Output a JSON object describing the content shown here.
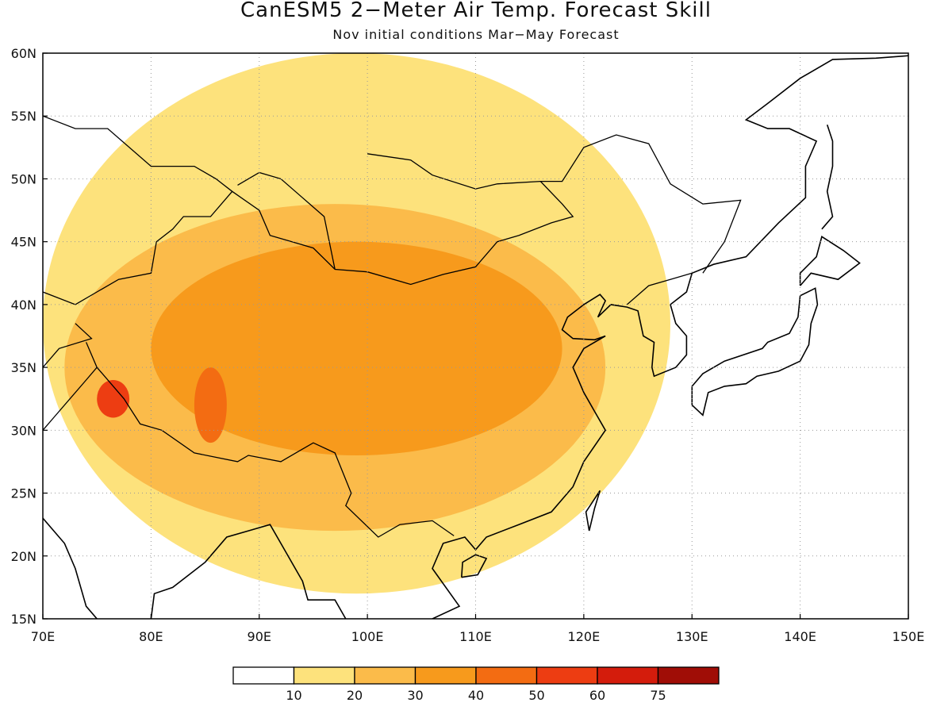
{
  "header": {
    "title": "CanESM5 2−Meter Air Temp. Forecast Skill",
    "subtitle": "Nov initial conditions  Mar−May Forecast"
  },
  "map": {
    "lon_range": [
      70,
      150
    ],
    "lat_range": [
      15,
      60
    ],
    "lon_ticks": [
      "70E",
      "80E",
      "90E",
      "100E",
      "110E",
      "120E",
      "130E",
      "140E",
      "150E"
    ],
    "lat_ticks": [
      "15N",
      "20N",
      "25N",
      "30N",
      "35N",
      "40N",
      "45N",
      "50N",
      "55N",
      "60N"
    ],
    "gridlines": "dotted"
  },
  "colorbar": {
    "labels": [
      "10",
      "20",
      "30",
      "40",
      "50",
      "60",
      "75"
    ],
    "colors": [
      "#ffffff",
      "#fde27c",
      "#fbbb4a",
      "#f79a1c",
      "#f36c12",
      "#ed3d12",
      "#d41c0c",
      "#a00d06"
    ]
  },
  "chart_data": {
    "type": "heatmap",
    "title": "CanESM5 2−Meter Air Temp. Forecast Skill",
    "subtitle": "Nov initial conditions  Mar−May Forecast",
    "x_range": [
      70,
      150
    ],
    "y_range": [
      15,
      60
    ],
    "levels": [
      10,
      20,
      30,
      40,
      50,
      60,
      75
    ],
    "level_colors": [
      "#ffffff",
      "#fde27c",
      "#fbbb4a",
      "#f79a1c",
      "#f36c12",
      "#ed3d12",
      "#d41c0c",
      "#a00d06"
    ],
    "regions": [
      {
        "level": 1,
        "lon": [
          70,
          128
        ],
        "lat": [
          17,
          60
        ]
      },
      {
        "level": 2,
        "lon": [
          72,
          122
        ],
        "lat": [
          22,
          48
        ]
      },
      {
        "level": 3,
        "lon": [
          80,
          118
        ],
        "lat": [
          28,
          45
        ]
      },
      {
        "level": 4,
        "lon": [
          84,
          87
        ],
        "lat": [
          29,
          35
        ]
      },
      {
        "level": 5,
        "lon": [
          75,
          78
        ],
        "lat": [
          31,
          34
        ]
      }
    ],
    "grid": true
  }
}
